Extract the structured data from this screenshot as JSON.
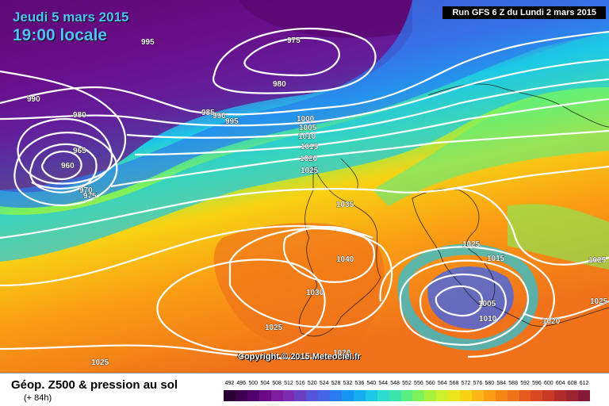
{
  "header": {
    "date": "Jeudi 5 mars 2015",
    "time": "19:00 locale",
    "run": "Run GFS 6 Z du Lundi 2 mars 2015"
  },
  "copyright": "Copyright © 2015 Meteociel.fr",
  "legend": {
    "title": "Géop. Z500 & pression au sol",
    "subtitle": "(+ 84h)",
    "scale": [
      "492",
      "496",
      "500",
      "504",
      "508",
      "512",
      "516",
      "520",
      "524",
      "528",
      "532",
      "536",
      "540",
      "544",
      "548",
      "552",
      "556",
      "560",
      "564",
      "568",
      "572",
      "576",
      "580",
      "584",
      "588",
      "592",
      "596",
      "600",
      "604",
      "608",
      "612"
    ],
    "colors": [
      "#2a0033",
      "#3d0050",
      "#52006b",
      "#6a0a86",
      "#7d1c9c",
      "#7d2bb0",
      "#6a3fc4",
      "#5555d8",
      "#4466e6",
      "#2a7cf0",
      "#1496f5",
      "#14aef2",
      "#1cc8e6",
      "#2cdcd0",
      "#3ce6aa",
      "#58ee82",
      "#7ef25a",
      "#a8f23c",
      "#cdf02c",
      "#ece61c",
      "#f8d214",
      "#fbb814",
      "#fa9e14",
      "#f68614",
      "#f0721a",
      "#e65c1e",
      "#d84a22",
      "#c63a26",
      "#b02c2a",
      "#9c2230",
      "#841a36"
    ]
  },
  "isobars": [
    {
      "label": "995"
    },
    {
      "label": "975"
    },
    {
      "label": "990"
    },
    {
      "label": "980"
    },
    {
      "label": "980"
    },
    {
      "label": "985"
    },
    {
      "label": "990"
    },
    {
      "label": "995"
    },
    {
      "label": "1000"
    },
    {
      "label": "1005"
    },
    {
      "label": "1010"
    },
    {
      "label": "1015"
    },
    {
      "label": "1020"
    },
    {
      "label": "1025"
    },
    {
      "label": "965"
    },
    {
      "label": "960"
    },
    {
      "label": "970"
    },
    {
      "label": "975"
    },
    {
      "label": "1035"
    },
    {
      "label": "1040"
    },
    {
      "label": "1030"
    },
    {
      "label": "1025"
    },
    {
      "label": "1025"
    },
    {
      "label": "1025"
    },
    {
      "label": "1015"
    },
    {
      "label": "1005"
    },
    {
      "label": "1010"
    },
    {
      "label": "1020"
    },
    {
      "label": "1025"
    },
    {
      "label": "1025"
    },
    {
      "label": "1020"
    }
  ]
}
